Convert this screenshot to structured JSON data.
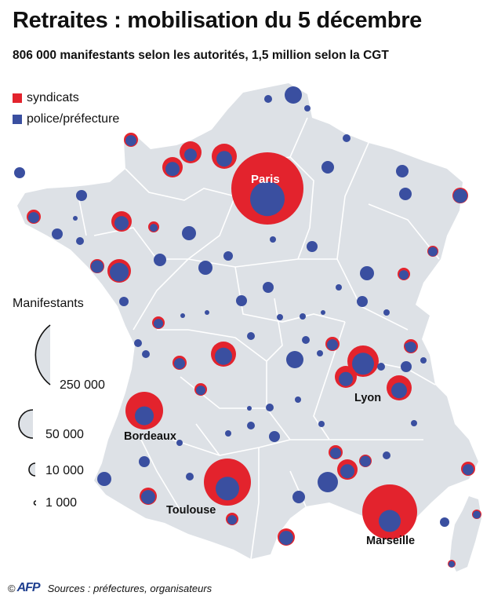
{
  "title": "Retraites : mobilisation du 5 décembre",
  "subtitle": "806 000 manifestants selon les autorités, 1,5 million selon la CGT",
  "legend": {
    "syndicats": {
      "label": "syndicats",
      "color": "#e3232d"
    },
    "police": {
      "label": "police/préfecture",
      "color": "#3a4fa0"
    }
  },
  "size_legend": {
    "title": "Manifestants",
    "entries": [
      {
        "label": "250 000",
        "value": 250000
      },
      {
        "label": "50 000",
        "value": 50000
      },
      {
        "label": "10 000",
        "value": 10000
      },
      {
        "label": "1 000",
        "value": 1000
      }
    ]
  },
  "cities": {
    "paris": "Paris",
    "lyon": "Lyon",
    "bordeaux": "Bordeaux",
    "toulouse": "Toulouse",
    "marseille": "Marseille"
  },
  "footer": {
    "copyright": "©",
    "agency": "AFP",
    "sources": "Sources : préfectures, organisateurs"
  },
  "colors": {
    "land": "#dde1e6",
    "border": "#ffffff",
    "syndicats": "#e3232d",
    "police": "#3a4fa0"
  }
}
